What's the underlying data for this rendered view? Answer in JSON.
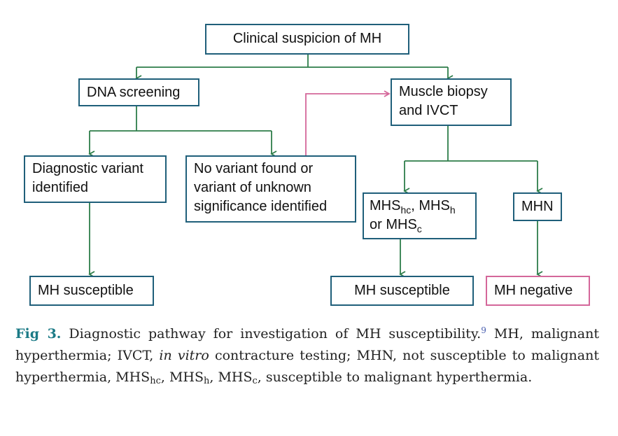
{
  "colors": {
    "box_border": "#1f5f7a",
    "box_highlight": "#d4679a",
    "arrow": "#2e7d4a",
    "arrow_highlight": "#d4679a",
    "caption_lead": "#1b7a86"
  },
  "nodes": {
    "clinical": {
      "text": "Clinical suspicion of MH"
    },
    "dna": {
      "text": "DNA screening"
    },
    "biopsy": {
      "line1": "Muscle biopsy",
      "line2": "and IVCT"
    },
    "diagnostic": {
      "line1": "Diagnostic variant",
      "line2": "identified"
    },
    "novariant": {
      "line1": "No variant found or",
      "line2": "variant of unknown",
      "line3": "significance identified"
    },
    "mhs": {
      "p1": "MHS",
      "s1": "hc",
      "p2": ", MHS",
      "s2": "h",
      "p3": "or MHS",
      "s3": "c"
    },
    "mhn": {
      "text": "MHN"
    },
    "susc1": {
      "text": "MH susceptible"
    },
    "susc2": {
      "text": "MH susceptible"
    },
    "negative": {
      "text": "MH negative"
    }
  },
  "caption": {
    "lead": "Fig 3.",
    "t1": " Diagnostic pathway for investigation of MH susceptibility.",
    "ref": "9",
    "t2": " MH, malignant hyperthermia; IVCT, ",
    "ital": "in vitro",
    "t3": " contracture testing; MHN, not susceptible to malignant hyperthermia, MHS",
    "s1": "hc",
    "t4": ", MHS",
    "s2": "h",
    "t5": ", MHS",
    "s3": "c",
    "t6": ", susceptible to malignant hyperthermia."
  }
}
